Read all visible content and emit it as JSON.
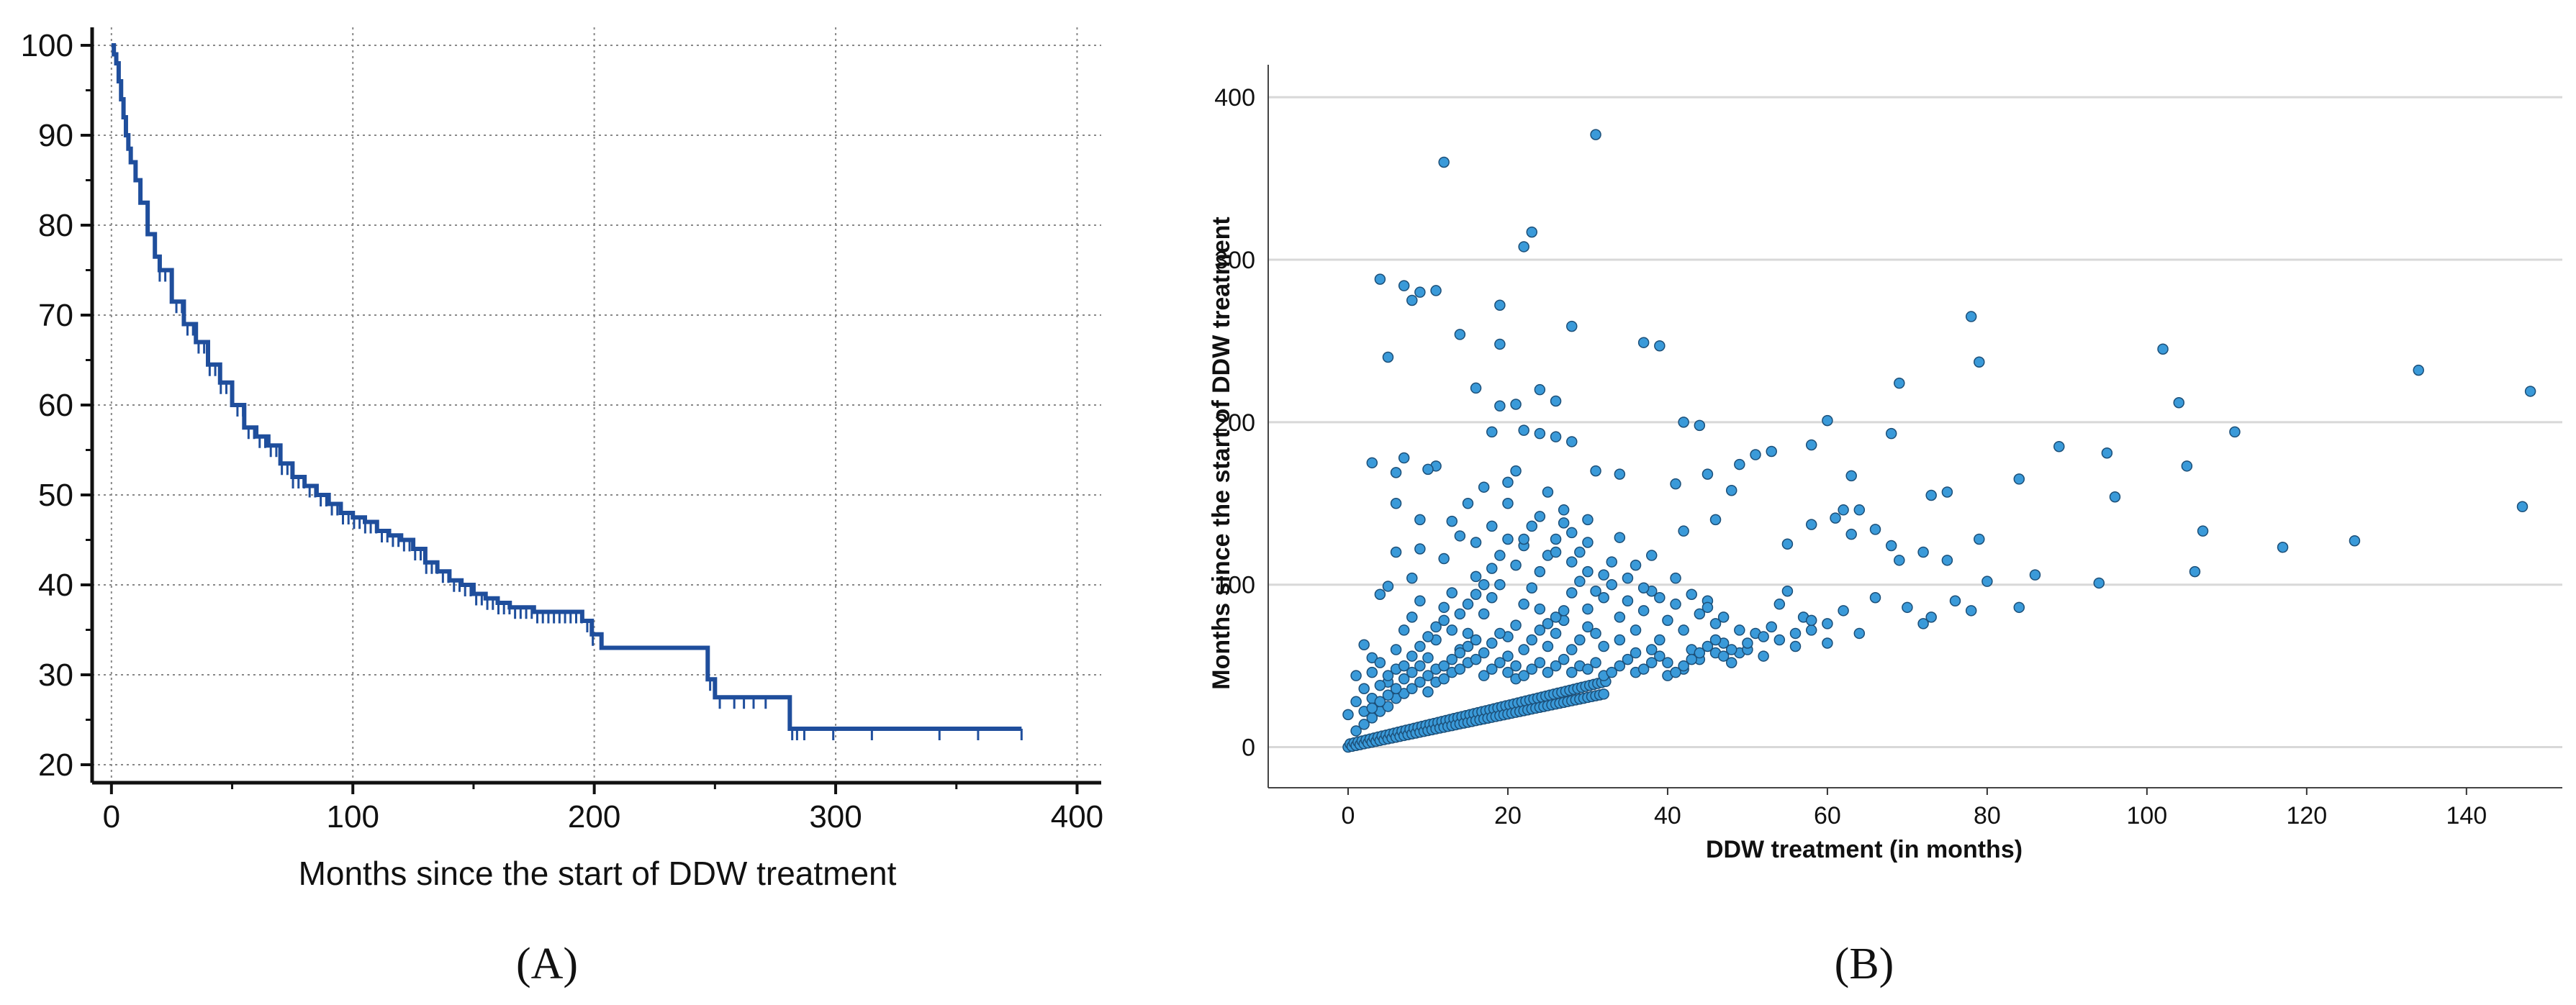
{
  "chart_data": [
    {
      "panel_label": "(A)",
      "type": "line",
      "step": true,
      "xlabel": "Months since the start of DDW treatment",
      "ylabel": "",
      "xlim": [
        -8,
        410
      ],
      "ylim": [
        18,
        102
      ],
      "xticks": [
        0,
        100,
        200,
        300,
        400
      ],
      "yticks": [
        20,
        30,
        40,
        50,
        60,
        70,
        80,
        90,
        100
      ],
      "grid": true,
      "color": "#1f4e9c",
      "series": [
        {
          "x": [
            0,
            1,
            2,
            3,
            4,
            5,
            6,
            7,
            8,
            10,
            12,
            15,
            18,
            20,
            25,
            30,
            35,
            40,
            45,
            50,
            55,
            60,
            65,
            70,
            75,
            80,
            85,
            90,
            95,
            100,
            105,
            110,
            115,
            120,
            125,
            130,
            135,
            140,
            145,
            150,
            155,
            160,
            165,
            170,
            175,
            180,
            185,
            190,
            195,
            199,
            203,
            210,
            220,
            230,
            240,
            247,
            250,
            260,
            270,
            279,
            281,
            290,
            300,
            320,
            340,
            360,
            377
          ],
          "y": [
            100,
            99,
            98,
            96,
            94,
            92,
            90,
            88.5,
            87,
            85,
            82.5,
            79,
            76.5,
            75,
            71.5,
            69,
            67,
            64.5,
            62.5,
            60,
            57.5,
            56.5,
            55.5,
            53.5,
            52,
            51,
            50,
            49,
            48,
            47.5,
            47,
            46,
            45.5,
            45,
            44,
            42.5,
            41.5,
            40.5,
            40,
            39,
            38.5,
            38,
            37.5,
            37.5,
            37,
            37,
            37,
            37,
            36,
            34.5,
            33,
            33,
            33,
            33,
            33,
            29.5,
            27.5,
            27.5,
            27.5,
            27.5,
            24,
            24,
            24,
            24,
            24,
            24,
            24
          ]
        }
      ],
      "censored_x": [
        248,
        252,
        258,
        262,
        266,
        271,
        282,
        284,
        287,
        299,
        315,
        343,
        359,
        377
      ]
    },
    {
      "panel_label": "(B)",
      "type": "scatter",
      "xlabel": "DDW treatment (in months)",
      "ylabel": "Months since the start of DDW treatment",
      "xlim": [
        -10,
        152
      ],
      "ylim": [
        -25,
        420
      ],
      "xticks": [
        0,
        20,
        40,
        60,
        80,
        100,
        120,
        140
      ],
      "yticks": [
        0,
        100,
        200,
        300,
        400
      ],
      "grid": "horizontal",
      "color": "#3a9ad9",
      "edge_color": "#1c4f78",
      "points": [
        [
          31,
          377
        ],
        [
          12,
          360
        ],
        [
          23,
          317
        ],
        [
          22,
          308
        ],
        [
          4,
          288
        ],
        [
          7,
          284
        ],
        [
          9,
          280
        ],
        [
          11,
          281
        ],
        [
          8,
          275
        ],
        [
          19,
          272
        ],
        [
          28,
          259
        ],
        [
          78,
          265
        ],
        [
          37,
          249
        ],
        [
          39,
          247
        ],
        [
          5,
          240
        ],
        [
          79,
          237
        ],
        [
          14,
          254
        ],
        [
          19,
          248
        ],
        [
          102,
          245
        ],
        [
          134,
          232
        ],
        [
          148,
          219
        ],
        [
          69,
          224
        ],
        [
          104,
          212
        ],
        [
          16,
          221
        ],
        [
          24,
          220
        ],
        [
          19,
          210
        ],
        [
          26,
          213
        ],
        [
          21,
          211
        ],
        [
          22,
          195
        ],
        [
          24,
          193
        ],
        [
          18,
          194
        ],
        [
          26,
          191
        ],
        [
          28,
          188
        ],
        [
          60,
          201
        ],
        [
          42,
          200
        ],
        [
          44,
          198
        ],
        [
          111,
          194
        ],
        [
          68,
          193
        ],
        [
          89,
          185
        ],
        [
          95,
          181
        ],
        [
          58,
          186
        ],
        [
          51,
          180
        ],
        [
          53,
          182
        ],
        [
          7,
          178
        ],
        [
          3,
          175
        ],
        [
          11,
          173
        ],
        [
          6,
          169
        ],
        [
          10,
          171
        ],
        [
          31,
          170
        ],
        [
          34,
          168
        ],
        [
          45,
          168
        ],
        [
          49,
          174
        ],
        [
          84,
          165
        ],
        [
          105,
          173
        ],
        [
          41,
          162
        ],
        [
          63,
          167
        ],
        [
          73,
          155
        ],
        [
          75,
          157
        ],
        [
          96,
          154
        ],
        [
          107,
          133
        ],
        [
          117,
          123
        ],
        [
          126,
          127
        ],
        [
          147,
          148
        ],
        [
          106,
          108
        ],
        [
          94,
          101
        ],
        [
          79,
          128
        ],
        [
          86,
          106
        ],
        [
          84,
          86
        ],
        [
          62,
          146
        ],
        [
          61,
          141
        ],
        [
          64,
          146
        ],
        [
          58,
          137
        ],
        [
          55,
          125
        ],
        [
          66,
          134
        ],
        [
          63,
          131
        ],
        [
          68,
          124
        ],
        [
          69,
          115
        ],
        [
          72,
          120
        ],
        [
          75,
          115
        ],
        [
          78,
          84
        ],
        [
          80,
          102
        ],
        [
          73,
          80
        ],
        [
          48,
          158
        ],
        [
          46,
          140
        ],
        [
          42,
          133
        ],
        [
          38,
          118
        ],
        [
          36,
          112
        ],
        [
          34,
          129
        ],
        [
          30,
          140
        ],
        [
          27,
          146
        ],
        [
          25,
          157
        ],
        [
          20,
          163
        ],
        [
          15,
          150
        ],
        [
          13,
          139
        ],
        [
          9,
          122
        ],
        [
          6,
          120
        ],
        [
          5,
          99
        ],
        [
          2,
          63
        ],
        [
          3,
          55
        ],
        [
          1,
          44
        ],
        [
          0,
          20
        ],
        [
          1,
          28
        ],
        [
          2,
          36
        ],
        [
          3,
          46
        ],
        [
          4,
          52
        ],
        [
          5,
          40
        ],
        [
          6,
          60
        ],
        [
          7,
          72
        ],
        [
          8,
          80
        ],
        [
          9,
          90
        ],
        [
          10,
          55
        ],
        [
          11,
          66
        ],
        [
          12,
          78
        ],
        [
          13,
          95
        ],
        [
          14,
          60
        ],
        [
          15,
          70
        ],
        [
          16,
          105
        ],
        [
          17,
          82
        ],
        [
          18,
          92
        ],
        [
          19,
          100
        ],
        [
          20,
          68
        ],
        [
          21,
          75
        ],
        [
          22,
          88
        ],
        [
          23,
          98
        ],
        [
          24,
          85
        ],
        [
          25,
          62
        ],
        [
          26,
          70
        ],
        [
          27,
          78
        ],
        [
          28,
          95
        ],
        [
          29,
          102
        ],
        [
          30,
          85
        ],
        [
          31,
          70
        ],
        [
          32,
          92
        ],
        [
          33,
          100
        ],
        [
          34,
          80
        ],
        [
          35,
          90
        ],
        [
          36,
          72
        ],
        [
          37,
          84
        ],
        [
          38,
          96
        ],
        [
          39,
          66
        ],
        [
          40,
          78
        ],
        [
          41,
          88
        ],
        [
          42,
          72
        ],
        [
          43,
          60
        ],
        [
          44,
          82
        ],
        [
          45,
          90
        ],
        [
          46,
          76
        ],
        [
          47,
          64
        ],
        [
          48,
          52
        ],
        [
          49,
          58
        ],
        [
          50,
          60
        ],
        [
          51,
          70
        ],
        [
          52,
          56
        ],
        [
          53,
          74
        ],
        [
          54,
          88
        ],
        [
          55,
          96
        ],
        [
          56,
          62
        ],
        [
          57,
          80
        ],
        [
          58,
          72
        ],
        [
          60,
          64
        ],
        [
          62,
          84
        ],
        [
          64,
          70
        ],
        [
          66,
          92
        ],
        [
          70,
          86
        ],
        [
          72,
          76
        ],
        [
          76,
          90
        ],
        [
          1,
          10
        ],
        [
          2,
          14
        ],
        [
          3,
          18
        ],
        [
          4,
          22
        ],
        [
          5,
          25
        ],
        [
          6,
          30
        ],
        [
          7,
          33
        ],
        [
          8,
          36
        ],
        [
          9,
          40
        ],
        [
          10,
          44
        ],
        [
          11,
          48
        ],
        [
          12,
          50
        ],
        [
          13,
          54
        ],
        [
          14,
          58
        ],
        [
          15,
          62
        ],
        [
          16,
          66
        ],
        [
          17,
          58
        ],
        [
          18,
          64
        ],
        [
          19,
          70
        ],
        [
          20,
          56
        ],
        [
          21,
          50
        ],
        [
          22,
          60
        ],
        [
          23,
          66
        ],
        [
          24,
          72
        ],
        [
          25,
          76
        ],
        [
          26,
          80
        ],
        [
          27,
          84
        ],
        [
          28,
          60
        ],
        [
          29,
          66
        ],
        [
          30,
          74
        ],
        [
          32,
          62
        ],
        [
          34,
          66
        ],
        [
          36,
          58
        ],
        [
          38,
          60
        ],
        [
          40,
          52
        ],
        [
          42,
          48
        ],
        [
          44,
          54
        ],
        [
          46,
          58
        ],
        [
          3,
          30
        ],
        [
          4,
          38
        ],
        [
          5,
          44
        ],
        [
          6,
          48
        ],
        [
          7,
          50
        ],
        [
          8,
          56
        ],
        [
          9,
          62
        ],
        [
          10,
          68
        ],
        [
          11,
          74
        ],
        [
          12,
          86
        ],
        [
          13,
          72
        ],
        [
          14,
          82
        ],
        [
          15,
          88
        ],
        [
          16,
          94
        ],
        [
          17,
          100
        ],
        [
          18,
          110
        ],
        [
          19,
          118
        ],
        [
          20,
          128
        ],
        [
          21,
          112
        ],
        [
          22,
          124
        ],
        [
          23,
          136
        ],
        [
          24,
          108
        ],
        [
          25,
          118
        ],
        [
          26,
          128
        ],
        [
          27,
          138
        ],
        [
          28,
          114
        ],
        [
          29,
          120
        ],
        [
          30,
          108
        ],
        [
          31,
          96
        ],
        [
          32,
          106
        ],
        [
          33,
          114
        ],
        [
          35,
          104
        ],
        [
          37,
          98
        ],
        [
          39,
          92
        ],
        [
          41,
          104
        ],
        [
          43,
          94
        ],
        [
          45,
          86
        ],
        [
          47,
          80
        ],
        [
          49,
          72
        ],
        [
          2,
          22
        ],
        [
          3,
          24
        ],
        [
          4,
          28
        ],
        [
          5,
          32
        ],
        [
          6,
          36
        ],
        [
          7,
          42
        ],
        [
          8,
          46
        ],
        [
          9,
          50
        ],
        [
          10,
          34
        ],
        [
          11,
          40
        ],
        [
          12,
          42
        ],
        [
          13,
          46
        ],
        [
          14,
          48
        ],
        [
          15,
          52
        ],
        [
          16,
          54
        ],
        [
          17,
          44
        ],
        [
          18,
          48
        ],
        [
          19,
          52
        ],
        [
          20,
          46
        ],
        [
          21,
          42
        ],
        [
          22,
          44
        ],
        [
          23,
          48
        ],
        [
          24,
          52
        ],
        [
          25,
          46
        ],
        [
          26,
          50
        ],
        [
          27,
          54
        ],
        [
          28,
          46
        ],
        [
          29,
          50
        ],
        [
          30,
          48
        ],
        [
          31,
          52
        ],
        [
          32,
          44
        ],
        [
          33,
          46
        ],
        [
          34,
          50
        ],
        [
          35,
          54
        ],
        [
          36,
          46
        ],
        [
          37,
          48
        ],
        [
          38,
          52
        ],
        [
          39,
          56
        ],
        [
          40,
          44
        ],
        [
          41,
          46
        ],
        [
          42,
          50
        ],
        [
          43,
          54
        ],
        [
          44,
          58
        ],
        [
          45,
          62
        ],
        [
          46,
          66
        ],
        [
          47,
          56
        ],
        [
          48,
          60
        ],
        [
          50,
          64
        ],
        [
          52,
          68
        ],
        [
          54,
          66
        ],
        [
          56,
          70
        ],
        [
          58,
          78
        ],
        [
          60,
          76
        ],
        [
          4,
          94
        ],
        [
          8,
          104
        ],
        [
          12,
          116
        ],
        [
          16,
          126
        ],
        [
          20,
          150
        ],
        [
          24,
          142
        ],
        [
          28,
          132
        ],
        [
          9,
          140
        ],
        [
          6,
          150
        ],
        [
          18,
          136
        ],
        [
          22,
          128
        ],
        [
          26,
          120
        ],
        [
          30,
          126
        ],
        [
          17,
          160
        ],
        [
          21,
          170
        ],
        [
          14,
          130
        ]
      ]
    }
  ]
}
